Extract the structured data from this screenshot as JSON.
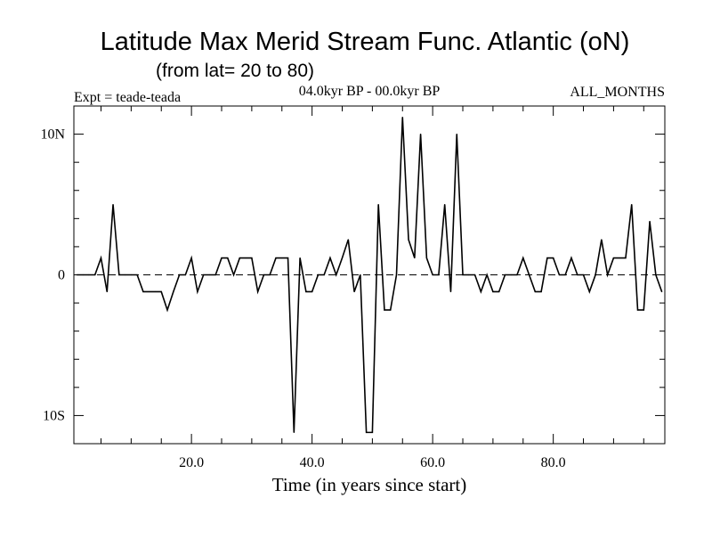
{
  "chart_data": {
    "type": "line",
    "title": "Latitude Max Merid Stream Func. Atlantic (oN)",
    "subtitle": "(from lat= 20 to 80)",
    "left_note": "Expt = teade-teada",
    "center_note": "04.0kyr BP - 00.0kyr BP",
    "right_note": "ALL_MONTHS",
    "xlabel": "Time (in years since start)",
    "ylabel": "",
    "xlim": [
      0.5,
      98.5
    ],
    "ylim": [
      -12,
      12
    ],
    "x_ticks": [
      {
        "value": 20,
        "label": "20.0"
      },
      {
        "value": 40,
        "label": "40.0"
      },
      {
        "value": 60,
        "label": "60.0"
      },
      {
        "value": 80,
        "label": "80.0"
      }
    ],
    "y_ticks": [
      {
        "value": 10,
        "label": "10N"
      },
      {
        "value": 0,
        "label": "0"
      },
      {
        "value": -10,
        "label": "10S"
      }
    ],
    "reference_line": {
      "value": 0,
      "style": "dashed"
    },
    "series": [
      {
        "name": "Latitude Max Merid Stream Func.",
        "x": [
          1,
          2,
          3,
          4,
          5,
          6,
          7,
          8,
          9,
          10,
          11,
          12,
          13,
          14,
          15,
          16,
          17,
          18,
          19,
          20,
          21,
          22,
          23,
          24,
          25,
          26,
          27,
          28,
          29,
          30,
          31,
          32,
          33,
          34,
          35,
          36,
          37,
          38,
          39,
          40,
          41,
          42,
          43,
          44,
          45,
          46,
          47,
          48,
          49,
          50,
          51,
          52,
          53,
          54,
          55,
          56,
          57,
          58,
          59,
          60,
          61,
          62,
          63,
          64,
          65,
          66,
          67,
          68,
          69,
          70,
          71,
          72,
          73,
          74,
          75,
          76,
          77,
          78,
          79,
          80,
          81,
          82,
          83,
          84,
          85,
          86,
          87,
          88,
          89,
          90,
          91,
          92,
          93,
          94,
          95,
          96,
          97,
          98
        ],
        "values": [
          0,
          0,
          0,
          0,
          1.2,
          -1.2,
          5,
          0,
          0,
          0,
          0,
          -1.2,
          -1.2,
          -1.2,
          -1.2,
          -2.5,
          -1.2,
          0,
          0,
          1.2,
          -1.2,
          0,
          0,
          0,
          1.2,
          1.2,
          0,
          1.2,
          1.2,
          1.2,
          -1.2,
          0,
          0,
          1.2,
          1.2,
          1.2,
          -11.2,
          1.2,
          -1.2,
          -1.2,
          0,
          0,
          1.2,
          0,
          1.2,
          2.5,
          -1.2,
          0,
          -11.2,
          -11.2,
          5,
          -2.5,
          -2.5,
          0,
          11.2,
          2.5,
          1.2,
          10,
          1.2,
          0,
          0,
          5,
          -1.2,
          10,
          0,
          0,
          0,
          -1.2,
          0,
          -1.2,
          -1.2,
          0,
          0,
          0,
          1.2,
          0,
          -1.2,
          -1.2,
          1.2,
          1.2,
          0,
          0,
          1.2,
          0,
          0,
          -1.2,
          0,
          2.5,
          0,
          1.2,
          1.2,
          1.2,
          5,
          -2.5,
          -2.5,
          3.8,
          0,
          -1.2
        ]
      }
    ]
  }
}
